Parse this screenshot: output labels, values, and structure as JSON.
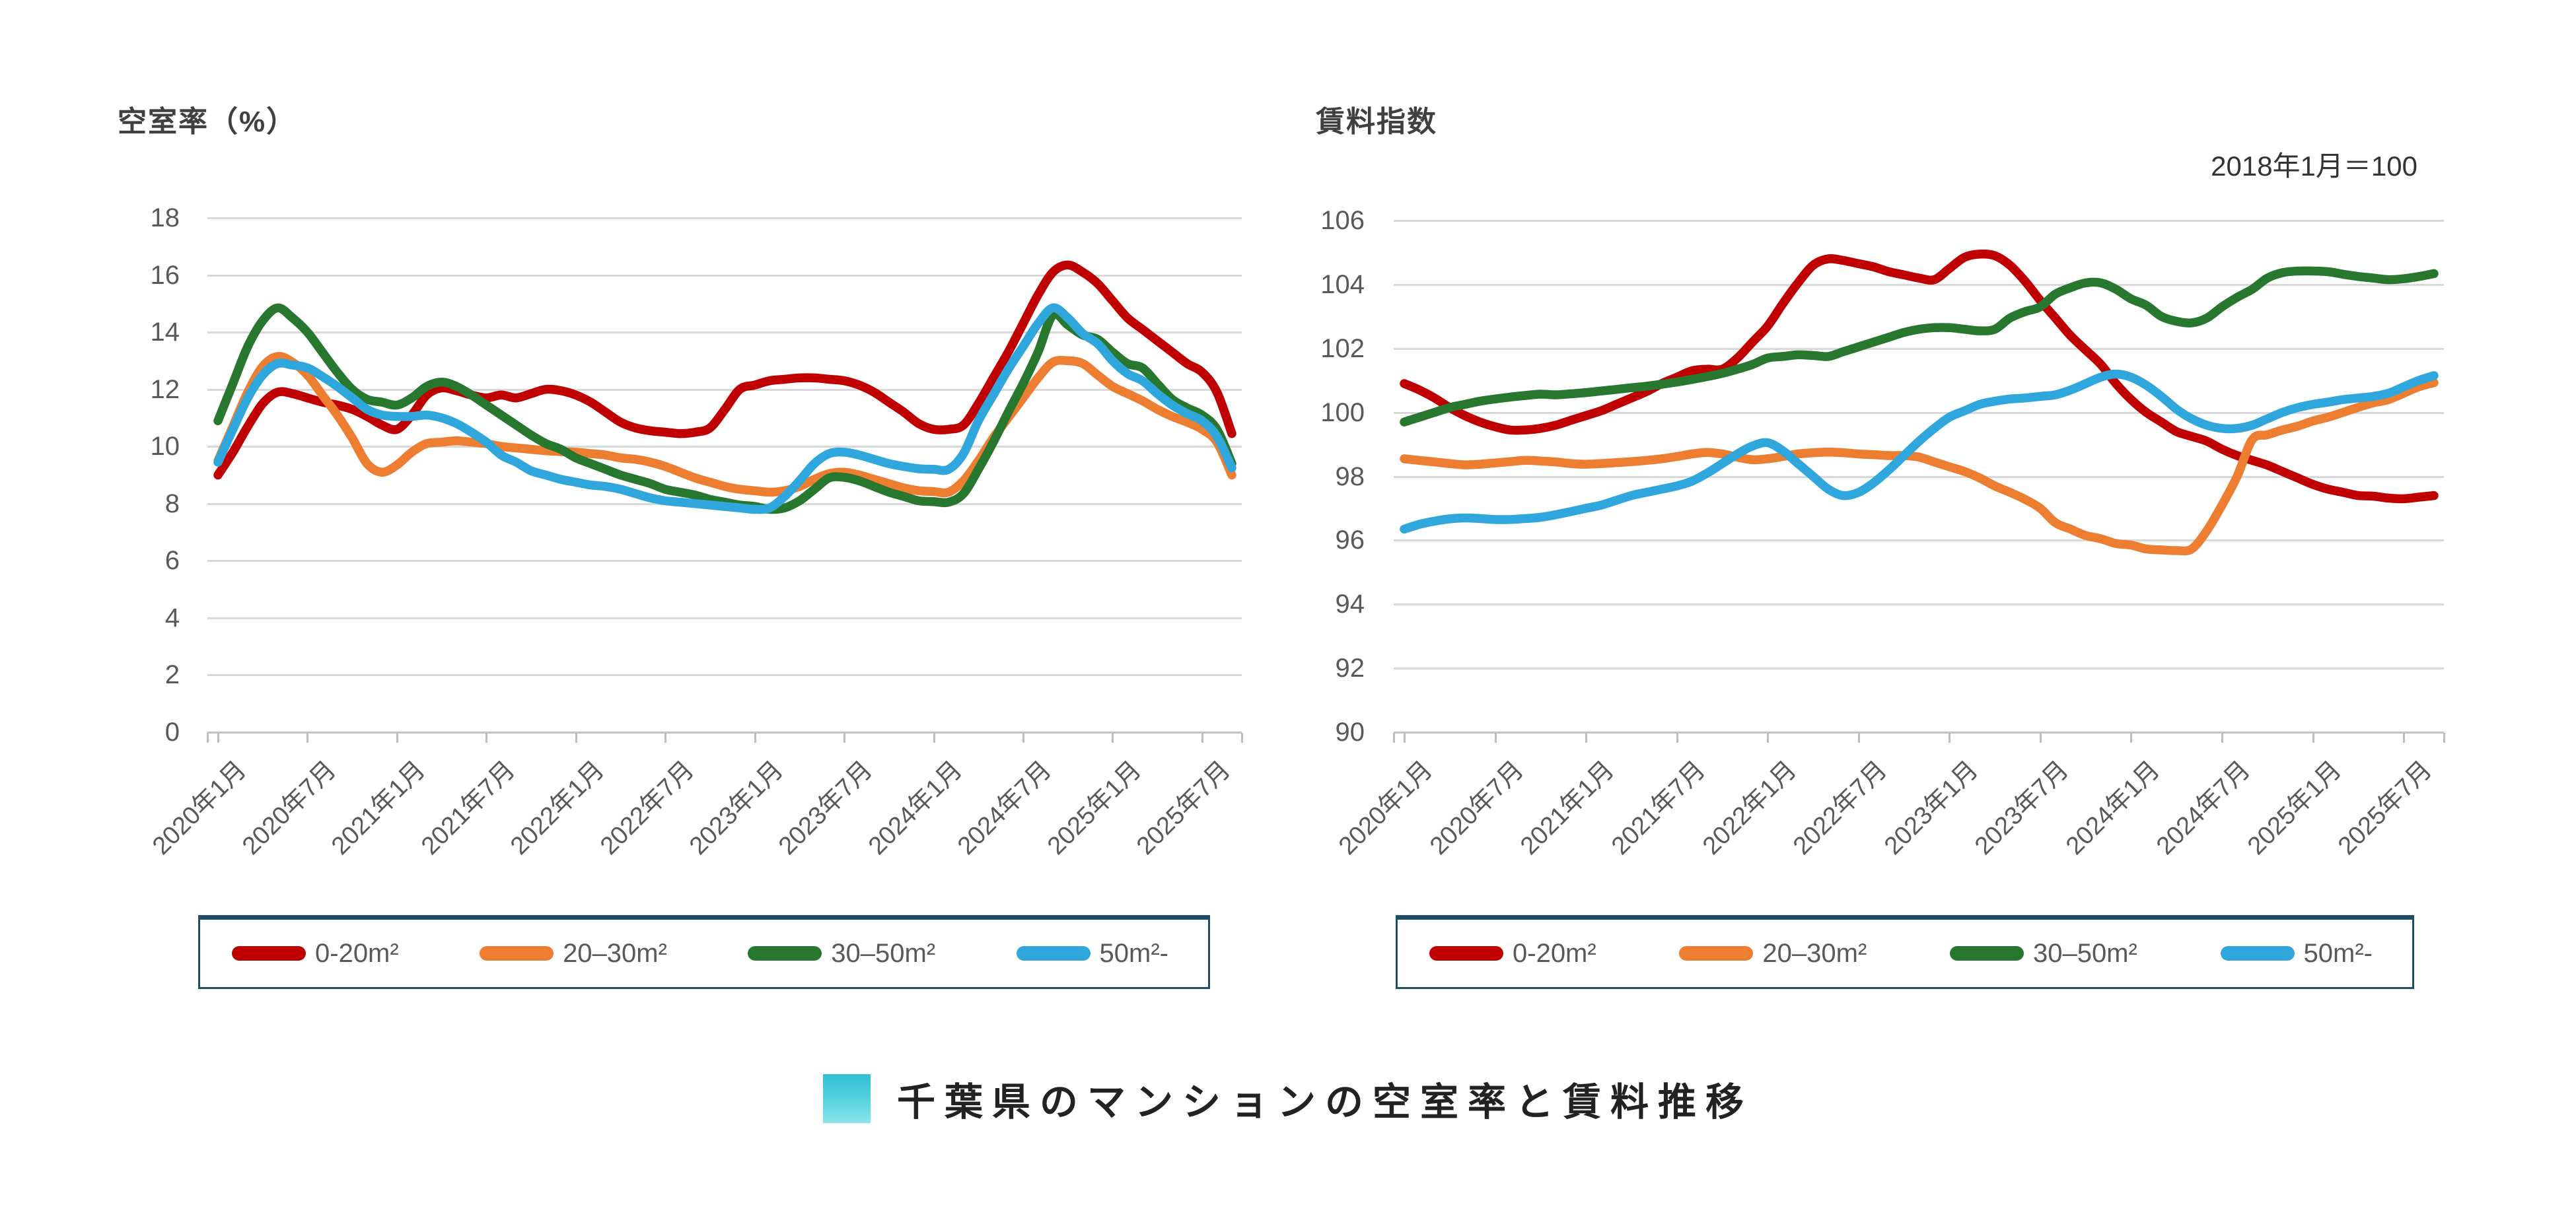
{
  "page": {
    "background": "#ffffff"
  },
  "main_title": {
    "text": "千葉県のマンションの空室率と賃料推移",
    "bullet_color": "#3fc4d6"
  },
  "legend": {
    "labels": [
      "0-20m²",
      "20–30m²",
      "30–50m²",
      "50m²-"
    ],
    "colors": [
      "#c00000",
      "#ed7d31",
      "#27782e",
      "#2fa7dc"
    ],
    "border_color": "#1d4e63"
  },
  "chart_data": [
    {
      "id": "vacancy",
      "type": "line",
      "title": "空室率（%）",
      "subtitle": "",
      "x_start": "2020-01",
      "x_interval": "month",
      "n_points": 69,
      "x_tick_labels": [
        "2020年1月",
        "2020年7月",
        "2021年1月",
        "2021年7月",
        "2022年1月",
        "2022年7月",
        "2023年1月",
        "2023年7月",
        "2024年1月",
        "2024年7月",
        "2025年1月",
        "2025年7月"
      ],
      "ylim": [
        0,
        18
      ],
      "y_tick_step": 2,
      "y_tick_labels": [
        "18",
        "16",
        "14",
        "12",
        "10",
        "8",
        "6",
        "4",
        "2",
        "0"
      ],
      "grid": true,
      "legend_position": "bottom",
      "series": [
        {
          "name": "0-20m²",
          "color": "#c00000",
          "values": [
            9.0,
            9.8,
            10.7,
            11.5,
            11.9,
            11.85,
            11.7,
            11.55,
            11.45,
            11.3,
            11.05,
            10.75,
            10.6,
            11.1,
            11.8,
            12.05,
            11.95,
            11.8,
            11.7,
            11.8,
            11.7,
            11.85,
            12.0,
            11.95,
            11.8,
            11.55,
            11.2,
            10.85,
            10.65,
            10.55,
            10.5,
            10.45,
            10.5,
            10.65,
            11.3,
            12.0,
            12.15,
            12.3,
            12.35,
            12.4,
            12.4,
            12.35,
            12.3,
            12.15,
            11.9,
            11.55,
            11.2,
            10.8,
            10.6,
            10.6,
            10.75,
            11.5,
            12.4,
            13.3,
            14.3,
            15.3,
            16.1,
            16.35,
            16.1,
            15.7,
            15.1,
            14.5,
            14.1,
            13.7,
            13.3,
            12.9,
            12.6,
            11.9,
            10.45
          ]
        },
        {
          "name": "20–30m²",
          "color": "#ed7d31",
          "values": [
            9.5,
            10.7,
            11.9,
            12.8,
            13.15,
            12.95,
            12.5,
            11.8,
            11.1,
            10.3,
            9.4,
            9.1,
            9.35,
            9.8,
            10.1,
            10.15,
            10.2,
            10.15,
            10.1,
            10.0,
            9.95,
            9.9,
            9.85,
            9.82,
            9.8,
            9.75,
            9.7,
            9.6,
            9.55,
            9.45,
            9.3,
            9.1,
            8.9,
            8.75,
            8.6,
            8.5,
            8.45,
            8.4,
            8.45,
            8.6,
            8.85,
            9.05,
            9.1,
            9.0,
            8.85,
            8.7,
            8.55,
            8.45,
            8.42,
            8.4,
            8.8,
            9.5,
            10.3,
            11.0,
            11.7,
            12.4,
            12.95,
            13.0,
            12.9,
            12.5,
            12.1,
            11.85,
            11.6,
            11.3,
            11.05,
            10.85,
            10.6,
            10.15,
            9.0
          ]
        },
        {
          "name": "30–50m²",
          "color": "#27782e",
          "values": [
            10.9,
            12.2,
            13.5,
            14.4,
            14.85,
            14.5,
            14.0,
            13.3,
            12.6,
            12.0,
            11.65,
            11.55,
            11.45,
            11.7,
            12.1,
            12.25,
            12.1,
            11.8,
            11.45,
            11.1,
            10.75,
            10.4,
            10.1,
            9.9,
            9.6,
            9.4,
            9.2,
            9.0,
            8.85,
            8.7,
            8.5,
            8.4,
            8.3,
            8.15,
            8.05,
            7.95,
            7.9,
            7.8,
            7.85,
            8.1,
            8.5,
            8.9,
            8.92,
            8.8,
            8.6,
            8.4,
            8.25,
            8.1,
            8.07,
            8.05,
            8.35,
            9.2,
            10.15,
            11.2,
            12.2,
            13.3,
            14.6,
            14.25,
            13.9,
            13.75,
            13.3,
            12.9,
            12.75,
            12.2,
            11.65,
            11.35,
            11.1,
            10.6,
            9.4
          ]
        },
        {
          "name": "50m²-",
          "color": "#2fa7dc",
          "values": [
            9.45,
            10.6,
            11.7,
            12.5,
            12.9,
            12.85,
            12.75,
            12.45,
            12.1,
            11.7,
            11.3,
            11.1,
            11.05,
            11.05,
            11.1,
            11.0,
            10.8,
            10.5,
            10.15,
            9.7,
            9.45,
            9.15,
            9.0,
            8.85,
            8.75,
            8.65,
            8.6,
            8.5,
            8.35,
            8.2,
            8.1,
            8.05,
            8.0,
            7.95,
            7.9,
            7.85,
            7.8,
            7.85,
            8.25,
            8.8,
            9.4,
            9.75,
            9.8,
            9.7,
            9.55,
            9.4,
            9.3,
            9.22,
            9.2,
            9.2,
            9.75,
            10.9,
            11.8,
            12.7,
            13.5,
            14.3,
            14.85,
            14.5,
            13.95,
            13.6,
            13.0,
            12.55,
            12.3,
            11.85,
            11.45,
            11.15,
            10.9,
            10.35,
            9.25
          ]
        }
      ]
    },
    {
      "id": "rent-index",
      "type": "line",
      "title": "賃料指数",
      "subtitle": "2018年1月＝100",
      "x_start": "2020-01",
      "x_interval": "month",
      "n_points": 69,
      "x_tick_labels": [
        "2020年1月",
        "2020年7月",
        "2021年1月",
        "2021年7月",
        "2022年1月",
        "2022年7月",
        "2023年1月",
        "2023年7月",
        "2024年1月",
        "2024年7月",
        "2025年1月",
        "2025年7月"
      ],
      "ylim": [
        90,
        106
      ],
      "y_tick_step": 2,
      "y_tick_labels": [
        "106",
        "104",
        "102",
        "100",
        "98",
        "96",
        "94",
        "92",
        "90"
      ],
      "grid": true,
      "legend_position": "bottom",
      "series": [
        {
          "name": "0-20m²",
          "color": "#c00000",
          "values": [
            100.9,
            100.7,
            100.45,
            100.15,
            99.9,
            99.7,
            99.55,
            99.45,
            99.45,
            99.5,
            99.6,
            99.75,
            99.9,
            100.05,
            100.25,
            100.45,
            100.65,
            100.9,
            101.1,
            101.3,
            101.35,
            101.35,
            101.7,
            102.2,
            102.7,
            103.4,
            104.05,
            104.6,
            104.8,
            104.75,
            104.65,
            104.55,
            104.4,
            104.3,
            104.2,
            104.15,
            104.5,
            104.85,
            104.95,
            104.9,
            104.6,
            104.1,
            103.5,
            102.95,
            102.4,
            101.95,
            101.5,
            100.9,
            100.4,
            100.0,
            99.7,
            99.4,
            99.25,
            99.1,
            98.85,
            98.65,
            98.5,
            98.35,
            98.15,
            97.95,
            97.75,
            97.6,
            97.5,
            97.4,
            97.38,
            97.32,
            97.3,
            97.35,
            97.4
          ]
        },
        {
          "name": "20–30m²",
          "color": "#ed7d31",
          "values": [
            98.55,
            98.5,
            98.45,
            98.4,
            98.36,
            98.38,
            98.42,
            98.46,
            98.5,
            98.48,
            98.45,
            98.4,
            98.38,
            98.4,
            98.43,
            98.46,
            98.5,
            98.55,
            98.62,
            98.7,
            98.75,
            98.7,
            98.6,
            98.52,
            98.55,
            98.62,
            98.7,
            98.74,
            98.76,
            98.74,
            98.7,
            98.68,
            98.65,
            98.65,
            98.6,
            98.45,
            98.3,
            98.15,
            97.95,
            97.7,
            97.5,
            97.28,
            97.0,
            96.55,
            96.35,
            96.15,
            96.05,
            95.9,
            95.85,
            95.73,
            95.7,
            95.68,
            95.73,
            96.3,
            97.1,
            98.0,
            99.15,
            99.3,
            99.45,
            99.57,
            99.73,
            99.85,
            100.0,
            100.16,
            100.3,
            100.4,
            100.6,
            100.8,
            100.93
          ]
        },
        {
          "name": "30–50m²",
          "color": "#27782e",
          "values": [
            99.7,
            99.85,
            100.0,
            100.15,
            100.25,
            100.35,
            100.42,
            100.48,
            100.53,
            100.57,
            100.55,
            100.58,
            100.62,
            100.67,
            100.72,
            100.77,
            100.82,
            100.88,
            100.95,
            101.03,
            101.12,
            101.22,
            101.35,
            101.5,
            101.7,
            101.75,
            101.8,
            101.78,
            101.75,
            101.9,
            102.05,
            102.2,
            102.35,
            102.5,
            102.6,
            102.65,
            102.65,
            102.6,
            102.55,
            102.6,
            102.95,
            103.15,
            103.3,
            103.7,
            103.9,
            104.05,
            104.05,
            103.85,
            103.55,
            103.35,
            103.0,
            102.85,
            102.8,
            102.95,
            103.3,
            103.6,
            103.85,
            104.2,
            104.37,
            104.42,
            104.42,
            104.4,
            104.32,
            104.25,
            104.2,
            104.15,
            104.18,
            104.25,
            104.34
          ]
        },
        {
          "name": "50m²-",
          "color": "#2fa7dc",
          "values": [
            96.35,
            96.5,
            96.6,
            96.67,
            96.7,
            96.68,
            96.65,
            96.65,
            96.68,
            96.72,
            96.8,
            96.9,
            97.0,
            97.1,
            97.25,
            97.4,
            97.5,
            97.6,
            97.7,
            97.85,
            98.1,
            98.4,
            98.7,
            98.95,
            99.05,
            98.8,
            98.4,
            98.0,
            97.6,
            97.4,
            97.5,
            97.8,
            98.2,
            98.65,
            99.1,
            99.5,
            99.85,
            100.05,
            100.25,
            100.35,
            100.42,
            100.45,
            100.5,
            100.55,
            100.7,
            100.9,
            101.1,
            101.2,
            101.1,
            100.85,
            100.5,
            100.1,
            99.8,
            99.6,
            99.5,
            99.5,
            99.6,
            99.8,
            100.0,
            100.15,
            100.25,
            100.32,
            100.4,
            100.45,
            100.5,
            100.6,
            100.8,
            101.0,
            101.15
          ]
        }
      ]
    }
  ]
}
